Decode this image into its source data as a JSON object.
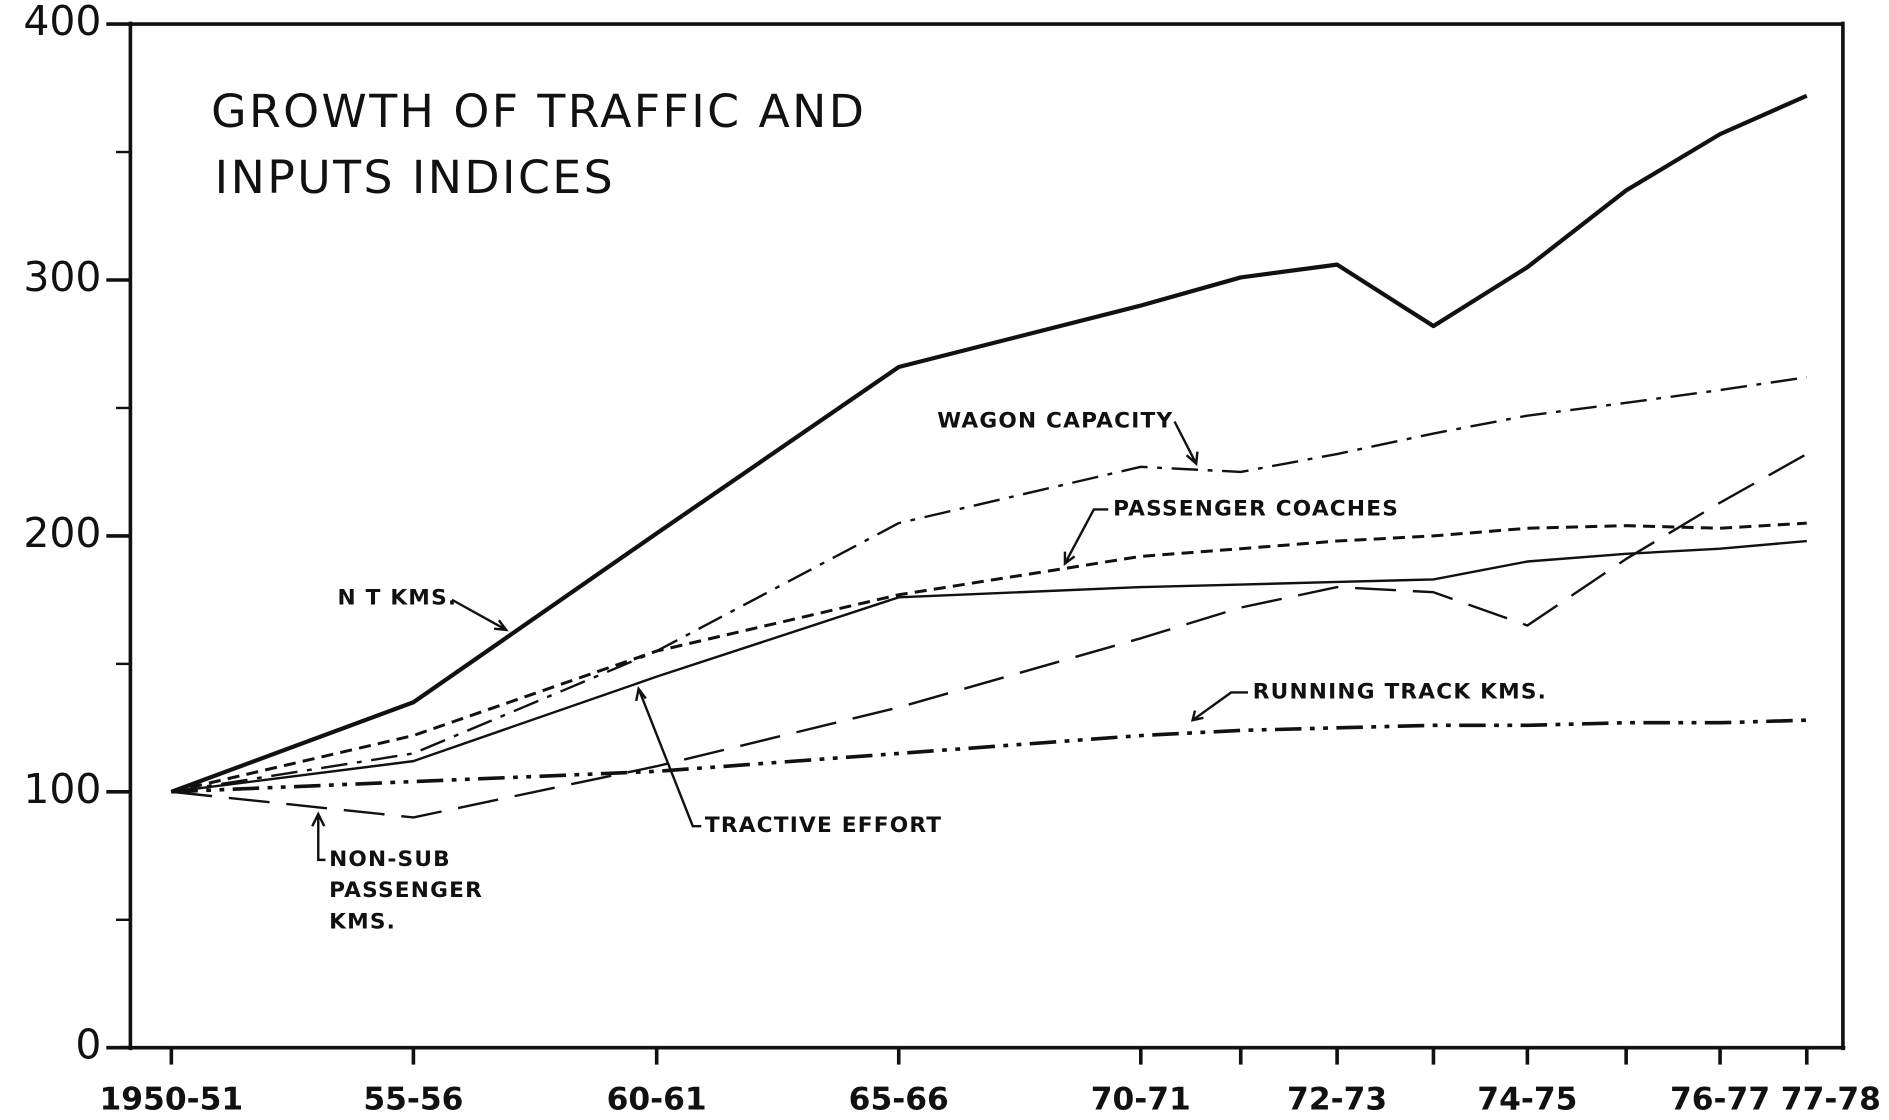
{
  "chart_data": {
    "type": "line",
    "title": [
      "GROWTH OF TRAFFIC AND",
      "INPUTS INDICES"
    ],
    "categories": [
      "1950-51",
      "55-56",
      "60-61",
      "65-66",
      "70-71",
      null,
      "72-73",
      null,
      "74-75",
      null,
      "76-77",
      "77-78"
    ],
    "ylim": [
      0,
      400
    ],
    "yticks": [
      0,
      100,
      200,
      300,
      400
    ],
    "minor_yticks": [
      50,
      150,
      250,
      350
    ],
    "series": [
      {
        "name": "N T KMS.",
        "color": "#111111",
        "style": "solid",
        "width": 3.5,
        "values": [
          100,
          135,
          201,
          266,
          290,
          301,
          306,
          282,
          305,
          335,
          357,
          372
        ]
      },
      {
        "name": "WAGON CAPACITY",
        "color": "#111111",
        "style": "dashdot",
        "width": 2,
        "values": [
          100,
          115,
          155,
          205,
          227,
          225,
          232,
          240,
          247,
          252,
          257,
          262
        ]
      },
      {
        "name": "PASSENGER COACHES",
        "color": "#111111",
        "style": "shortdash",
        "width": 2.5,
        "values": [
          100,
          122,
          155,
          177,
          192,
          195,
          198,
          200,
          203,
          204,
          203,
          205
        ]
      },
      {
        "name": "TRACTIVE EFFORT",
        "color": "#111111",
        "style": "solid",
        "width": 2,
        "values": [
          100,
          112,
          145,
          176,
          180,
          181,
          182,
          183,
          190,
          193,
          195,
          198
        ]
      },
      {
        "name": "RUNNING TRACK KMS.",
        "color": "#111111",
        "style": "dashdotdot",
        "width": 3,
        "values": [
          100,
          104,
          108,
          115,
          122,
          124,
          125,
          126,
          126,
          127,
          127,
          128
        ]
      },
      {
        "name": [
          "NON-SUB",
          "PASSENGER",
          "KMS."
        ],
        "color": "#111111",
        "style": "longdash",
        "width": 2,
        "values": [
          100,
          90,
          110,
          133,
          160,
          172,
          180,
          178,
          165,
          191,
          213,
          232
        ]
      }
    ]
  }
}
